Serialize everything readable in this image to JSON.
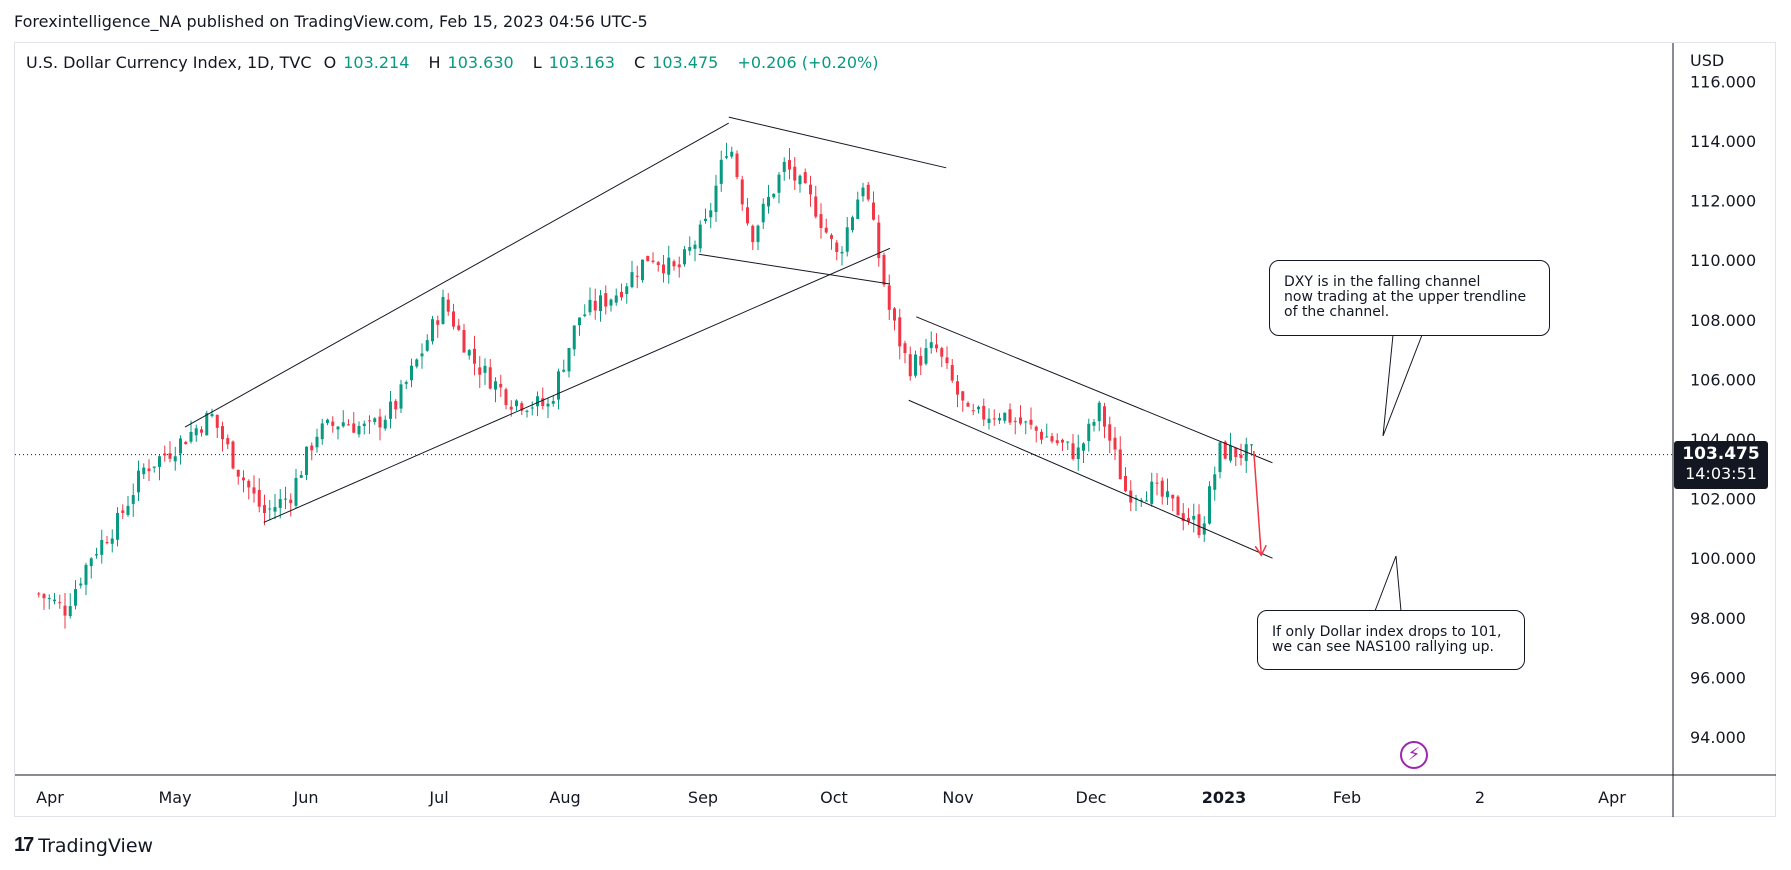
{
  "header": {
    "published_line": "Forexintelligence_NA published on TradingView.com, Feb 15, 2023 04:56 UTC-5"
  },
  "legend": {
    "symbol": "U.S. Dollar Currency Index, 1D, TVC",
    "open_label": "O",
    "open": "103.214",
    "high_label": "H",
    "high": "103.630",
    "low_label": "L",
    "low": "103.163",
    "close_label": "C",
    "close": "103.475",
    "change": "+0.206 (+0.20%)"
  },
  "price_axis": {
    "currency": "USD",
    "ticks": [
      "116.000",
      "114.000",
      "112.000",
      "110.000",
      "108.000",
      "106.000",
      "104.000",
      "102.000",
      "100.000",
      "98.000",
      "96.000",
      "94.000"
    ]
  },
  "time_axis": {
    "labels": [
      "Apr",
      "May",
      "Jun",
      "Jul",
      "Aug",
      "Sep",
      "Oct",
      "Nov",
      "Dec",
      "2023",
      "Feb",
      "2",
      "Apr"
    ]
  },
  "current_price": {
    "price": "103.475",
    "countdown": "14:03:51"
  },
  "callouts": [
    {
      "text": "DXY is in the falling channel\nnow trading at the upper trendline\nof the channel."
    },
    {
      "text": "If only Dollar index drops to 101,\nwe can see NAS100 rallying up."
    }
  ],
  "branding": {
    "name": "TradingView",
    "logo_text": "17"
  },
  "colors": {
    "up": "#089981",
    "down": "#f23645",
    "line": "#131722",
    "grid": "#e0e3eb",
    "accent": "#9c27b0"
  },
  "chart_data": {
    "type": "candlestick",
    "title": "U.S. Dollar Currency Index, 1D, TVC",
    "ylabel": "USD",
    "ylim": [
      92.3,
      116.5
    ],
    "x_months": [
      "Apr",
      "May",
      "Jun",
      "Jul",
      "Aug",
      "Sep",
      "Oct",
      "Nov",
      "Dec",
      "2023",
      "Feb",
      "2",
      "Apr"
    ],
    "close_path": [
      {
        "date": "2022-03-28",
        "close": 98.8
      },
      {
        "date": "2022-04-04",
        "close": 98.3
      },
      {
        "date": "2022-04-11",
        "close": 100.1
      },
      {
        "date": "2022-04-18",
        "close": 101.2
      },
      {
        "date": "2022-04-25",
        "close": 103.0
      },
      {
        "date": "2022-05-02",
        "close": 103.6
      },
      {
        "date": "2022-05-13",
        "close": 104.8
      },
      {
        "date": "2022-05-20",
        "close": 103.0
      },
      {
        "date": "2022-05-27",
        "close": 101.5
      },
      {
        "date": "2022-06-03",
        "close": 102.1
      },
      {
        "date": "2022-06-10",
        "close": 104.2
      },
      {
        "date": "2022-06-17",
        "close": 104.6
      },
      {
        "date": "2022-06-24",
        "close": 104.3
      },
      {
        "date": "2022-07-01",
        "close": 105.1
      },
      {
        "date": "2022-07-08",
        "close": 106.9
      },
      {
        "date": "2022-07-14",
        "close": 108.6
      },
      {
        "date": "2022-07-22",
        "close": 106.6
      },
      {
        "date": "2022-08-01",
        "close": 105.3
      },
      {
        "date": "2022-08-11",
        "close": 105.1
      },
      {
        "date": "2022-08-19",
        "close": 108.1
      },
      {
        "date": "2022-08-29",
        "close": 108.9
      },
      {
        "date": "2022-09-07",
        "close": 110.2
      },
      {
        "date": "2022-09-14",
        "close": 109.6
      },
      {
        "date": "2022-09-22",
        "close": 111.2
      },
      {
        "date": "2022-09-28",
        "close": 114.1
      },
      {
        "date": "2022-10-04",
        "close": 110.8
      },
      {
        "date": "2022-10-13",
        "close": 113.2
      },
      {
        "date": "2022-10-21",
        "close": 111.8
      },
      {
        "date": "2022-10-27",
        "close": 110.1
      },
      {
        "date": "2022-11-03",
        "close": 112.7
      },
      {
        "date": "2022-11-10",
        "close": 108.2
      },
      {
        "date": "2022-11-15",
        "close": 106.4
      },
      {
        "date": "2022-11-22",
        "close": 107.1
      },
      {
        "date": "2022-12-01",
        "close": 104.7
      },
      {
        "date": "2022-12-09",
        "close": 104.9
      },
      {
        "date": "2022-12-20",
        "close": 104.2
      },
      {
        "date": "2022-12-30",
        "close": 103.5
      },
      {
        "date": "2023-01-05",
        "close": 105.0
      },
      {
        "date": "2023-01-12",
        "close": 102.2
      },
      {
        "date": "2023-01-19",
        "close": 102.3
      },
      {
        "date": "2023-01-26",
        "close": 101.6
      },
      {
        "date": "2023-02-01",
        "close": 101.0
      },
      {
        "date": "2023-02-06",
        "close": 103.6
      },
      {
        "date": "2023-02-15",
        "close": 103.475
      }
    ],
    "trendlines": [
      {
        "name": "rising-channel-upper",
        "from": {
          "date": "2022-05-06",
          "price": 104.4
        },
        "to": {
          "date": "2022-09-28",
          "price": 114.6
        }
      },
      {
        "name": "rising-channel-lower",
        "from": {
          "date": "2022-05-27",
          "price": 101.2
        },
        "to": {
          "date": "2022-11-10",
          "price": 110.4
        }
      },
      {
        "name": "flag-upper",
        "from": {
          "date": "2022-09-28",
          "price": 114.8
        },
        "to": {
          "date": "2022-11-25",
          "price": 113.1
        }
      },
      {
        "name": "flag-lower",
        "from": {
          "date": "2022-09-20",
          "price": 110.2
        },
        "to": {
          "date": "2022-11-10",
          "price": 109.2
        }
      },
      {
        "name": "falling-channel-upper",
        "from": {
          "date": "2022-11-17",
          "price": 108.1
        },
        "to": {
          "date": "2023-02-20",
          "price": 103.2
        }
      },
      {
        "name": "falling-channel-lower",
        "from": {
          "date": "2022-11-15",
          "price": 105.3
        },
        "to": {
          "date": "2023-02-20",
          "price": 100.0
        }
      }
    ],
    "projection_arrow": {
      "from": {
        "date": "2023-02-15",
        "price": 103.6
      },
      "to": {
        "date": "2023-02-17",
        "price": 100.1
      }
    }
  }
}
